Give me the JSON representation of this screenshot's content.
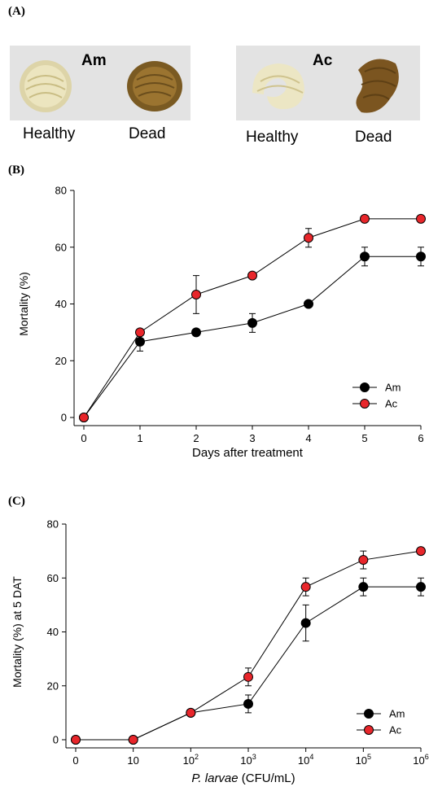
{
  "panels": {
    "a": {
      "label": "(A)",
      "photos": [
        {
          "species": "Am",
          "healthy_label": "Healthy",
          "dead_label": "Dead"
        },
        {
          "species": "Ac",
          "healthy_label": "Healthy",
          "dead_label": "Dead"
        }
      ]
    },
    "b": {
      "label": "(B)"
    },
    "c": {
      "label": "(C)"
    }
  },
  "colors": {
    "Am": "#000000",
    "Ac": "#e8262b",
    "axis": "#000000",
    "photo_bg": "#e4e4e4"
  },
  "icons": [
    "healthy-larva-icon",
    "dead-larva-icon"
  ],
  "chart_data": [
    {
      "type": "line",
      "xlabel": "Days after treatment",
      "ylabel": "Mortality (%)",
      "x": [
        0,
        1,
        2,
        3,
        4,
        5,
        6
      ],
      "x_ticks": [
        "0",
        "1",
        "2",
        "3",
        "4",
        "5",
        "6"
      ],
      "xlim": [
        0,
        6
      ],
      "ylim": [
        0,
        80
      ],
      "y_ticks": [
        0,
        20,
        40,
        60,
        80
      ],
      "grid": false,
      "legend": "bottom-right",
      "series": [
        {
          "name": "Am",
          "values": [
            0,
            26.7,
            30,
            33.3,
            40,
            56.7,
            56.7
          ],
          "errors": [
            0,
            3.3,
            0,
            3.3,
            0,
            3.3,
            3.3
          ]
        },
        {
          "name": "Ac",
          "values": [
            0,
            30,
            43.3,
            50,
            63.3,
            70,
            70
          ],
          "errors": [
            0,
            0,
            6.7,
            0,
            3.3,
            0,
            0
          ]
        }
      ]
    },
    {
      "type": "line",
      "xlabel_italic": "P. larvae",
      "xlabel": "(CFU/mL)",
      "ylabel": "Mortality (%) at 5 DAT",
      "x_ticks": [
        {
          "base": "0",
          "exp": ""
        },
        {
          "base": "10",
          "exp": ""
        },
        {
          "base": "10",
          "exp": "2"
        },
        {
          "base": "10",
          "exp": "3"
        },
        {
          "base": "10",
          "exp": "4"
        },
        {
          "base": "10",
          "exp": "5"
        },
        {
          "base": "10",
          "exp": "6"
        }
      ],
      "ylim": [
        0,
        80
      ],
      "y_ticks": [
        0,
        20,
        40,
        60,
        80
      ],
      "grid": false,
      "legend": "bottom-right",
      "series": [
        {
          "name": "Am",
          "values": [
            0,
            0,
            10,
            13.3,
            43.3,
            56.7,
            56.7
          ],
          "errors": [
            0,
            0,
            0,
            3.3,
            6.7,
            3.3,
            3.3
          ]
        },
        {
          "name": "Ac",
          "values": [
            0,
            0,
            10,
            23.3,
            56.7,
            66.7,
            70
          ],
          "errors": [
            0,
            0,
            0,
            3.3,
            3.3,
            3.3,
            0
          ]
        }
      ]
    }
  ]
}
